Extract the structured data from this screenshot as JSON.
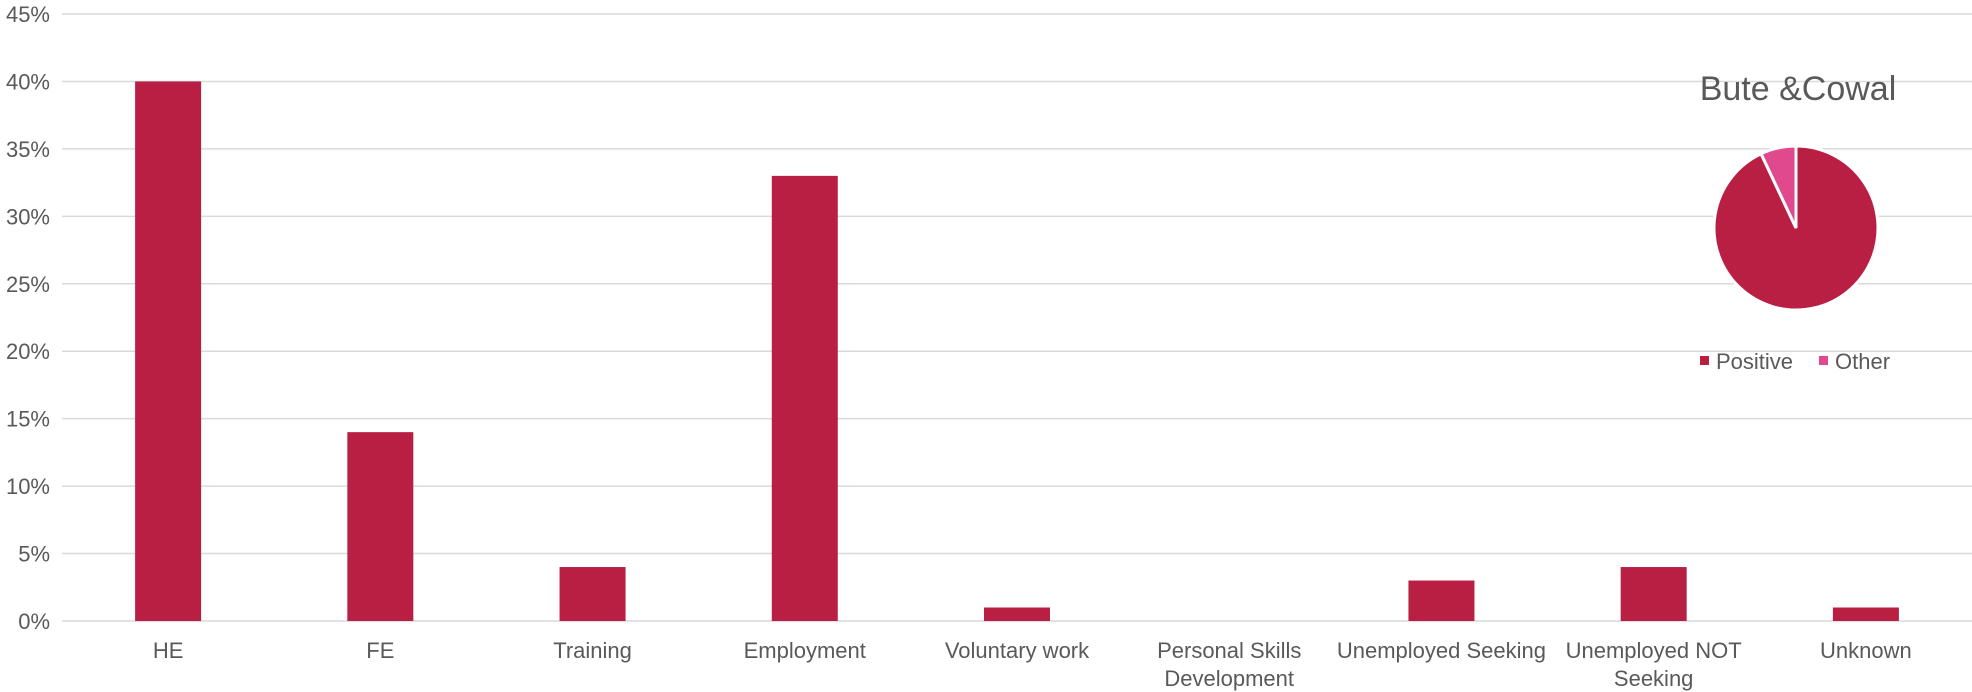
{
  "chart_data": [
    {
      "type": "bar",
      "categories": [
        "HE",
        "FE",
        "Training",
        "Employment",
        "Voluntary work",
        "Personal Skills Development",
        "Unemployed Seeking",
        "Unemployed NOT Seeking",
        "Unknown"
      ],
      "category_lines": [
        [
          "HE"
        ],
        [
          "FE"
        ],
        [
          "Training"
        ],
        [
          "Employment"
        ],
        [
          "Voluntary work"
        ],
        [
          "Personal Skills",
          "Development"
        ],
        [
          "Unemployed Seeking"
        ],
        [
          "Unemployed NOT",
          "Seeking"
        ],
        [
          "Unknown"
        ]
      ],
      "values": [
        40,
        14,
        4,
        33,
        1,
        0,
        3,
        4,
        1
      ],
      "ylim": [
        0,
        45
      ],
      "yticks": [
        0,
        5,
        10,
        15,
        20,
        25,
        30,
        35,
        40,
        45
      ],
      "ytick_labels": [
        "0%",
        "5%",
        "10%",
        "15%",
        "20%",
        "25%",
        "30%",
        "35%",
        "40%",
        "45%"
      ],
      "grid": true,
      "bar_color": "#b91e43",
      "grid_color": "#d9d9d9"
    },
    {
      "type": "pie",
      "title": "Bute &Cowal",
      "labels": [
        "Positive",
        "Other"
      ],
      "values": [
        93,
        7
      ],
      "colors": [
        "#b91e43",
        "#e0498d"
      ],
      "legend_placement": "bottom"
    }
  ]
}
